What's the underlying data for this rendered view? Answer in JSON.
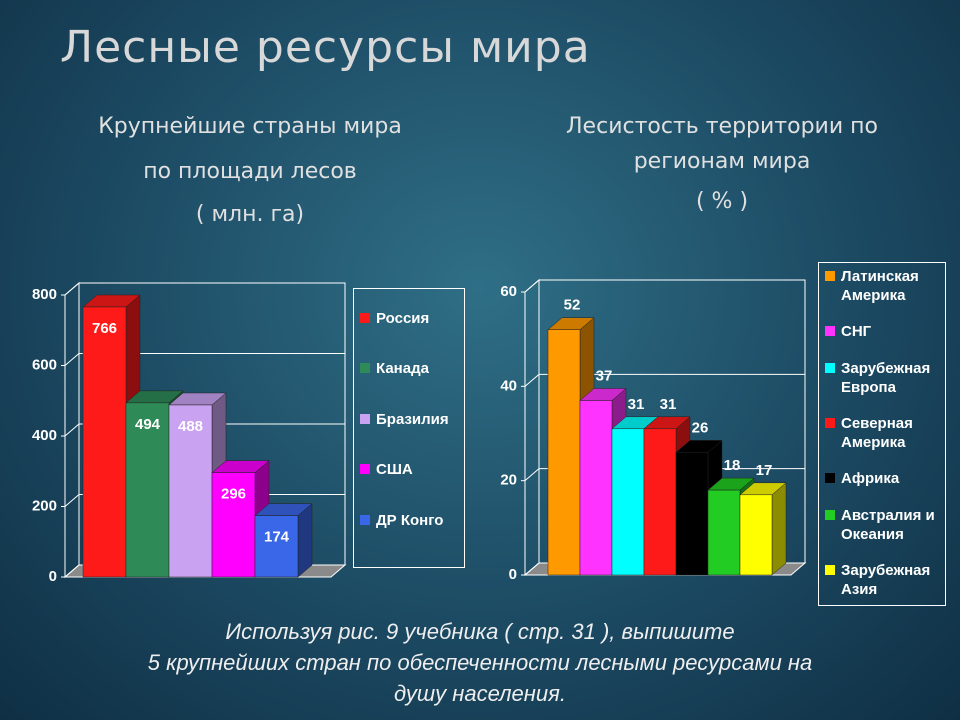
{
  "title": "Лесные ресурсы мира",
  "caption": [
    "Используя рис. 9 учебника ( стр. 31 ), выпишите",
    "5 крупнейших стран по обеспеченности лесными ресурсами на",
    "душу населения."
  ],
  "chart_data": [
    {
      "type": "bar",
      "title": [
        "Крупнейшие страны мира",
        "по площади лесов"
      ],
      "subtitle": "( млн. га)",
      "categories": [
        "Россия",
        "Канада",
        "Бразилия",
        "США",
        "ДР Конго"
      ],
      "values": [
        766,
        494,
        488,
        296,
        174
      ],
      "colors": [
        "#ff1a1a",
        "#2e8b57",
        "#c9a2f2",
        "#ff00ff",
        "#3a66e8"
      ],
      "ylim": [
        0,
        800
      ],
      "yticks": [
        0,
        200,
        400,
        600,
        800
      ],
      "grid": true,
      "legend": "right"
    },
    {
      "type": "bar",
      "title": [
        "Лесистость территории по",
        "регионам мира"
      ],
      "subtitle": "( % )",
      "categories": [
        "Латинская Америка",
        "СНГ",
        "Зарубежная Европа",
        "Северная Америка",
        "Африка",
        "Австралия и Океания",
        "Зарубежная Азия"
      ],
      "values": [
        52,
        37,
        31,
        31,
        26,
        18,
        17
      ],
      "colors": [
        "#ff9900",
        "#ff33ff",
        "#00ffff",
        "#ff1a1a",
        "#000000",
        "#22cc22",
        "#ffff00"
      ],
      "ylim": [
        0,
        60
      ],
      "yticks": [
        0,
        20,
        40,
        60
      ],
      "grid": true,
      "legend": "right"
    }
  ]
}
